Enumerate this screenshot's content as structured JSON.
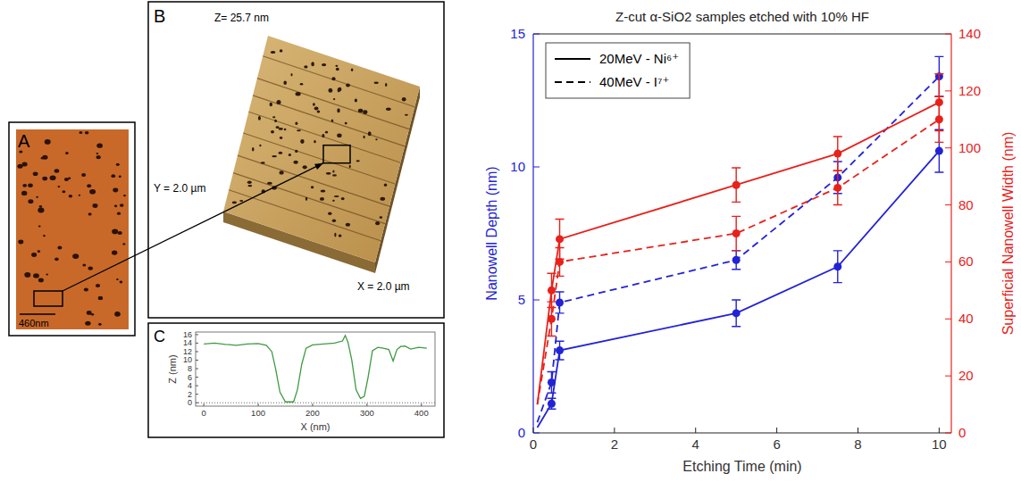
{
  "images": [
    {
      "panel": "A",
      "scale_bar": "460nm"
    },
    {
      "panel": "B",
      "z_label": "Z= 25.7 nm",
      "y_label": "Y = 2.0 µm",
      "x_label": "X = 2.0 µm"
    }
  ],
  "chart_data": [
    {
      "panel": "C",
      "type": "line",
      "x_label": "X (nm)",
      "y_label": "Z (nm)",
      "x": [
        0,
        20,
        40,
        60,
        80,
        100,
        115,
        125,
        132,
        140,
        150,
        165,
        172,
        180,
        188,
        200,
        220,
        240,
        255,
        260,
        265,
        272,
        280,
        288,
        295,
        302,
        310,
        320,
        330,
        340,
        348,
        355,
        362,
        370,
        380,
        395,
        410
      ],
      "values": [
        13.8,
        14.0,
        13.7,
        13.5,
        13.8,
        13.9,
        13.5,
        12.0,
        8,
        2.5,
        0.2,
        0.2,
        3,
        9,
        12.8,
        13.6,
        13.8,
        14.0,
        14.5,
        15.8,
        14.2,
        10,
        3,
        1,
        1.5,
        6,
        12.2,
        13,
        12.8,
        12.5,
        9.8,
        12.5,
        13.2,
        13.3,
        12.6,
        13.0,
        12.8
      ],
      "color": "#3f9a3f",
      "xlim": [
        -15,
        425
      ],
      "xticks": [
        0,
        100,
        200,
        300,
        400
      ],
      "ylim": [
        -0.8,
        16.6
      ],
      "yticks": [
        0,
        2,
        4,
        6,
        8,
        10,
        12,
        14,
        16
      ]
    },
    {
      "type": "line",
      "title": "Z-cut α-SiO2 samples etched with 10% HF",
      "x_label": "Etching Time (min)",
      "y_label": "Nanowell Depth (nm)",
      "y2_label": "Superficial Nanowell Width (nm)",
      "x": [
        0.1,
        0.45,
        0.65,
        5,
        7.5,
        10
      ],
      "xlim": [
        0,
        10.3
      ],
      "xticks": [
        0,
        2,
        4,
        6,
        8,
        10
      ],
      "ylim": [
        0,
        15
      ],
      "yticks": [
        0,
        5,
        10,
        15
      ],
      "y2lim": [
        0,
        140
      ],
      "y2ticks": [
        0,
        20,
        40,
        60,
        80,
        100,
        120,
        140
      ],
      "legend": "upper-left",
      "series": [
        {
          "name": "20MeV - Ni⁶⁺",
          "color": "#2323d6",
          "line_style": "solid",
          "marker": "circle",
          "values": [
            0.2,
            1.1,
            3.1,
            4.5,
            6.25,
            10.6
          ],
          "errors": [
            null,
            0.2,
            0.35,
            0.5,
            0.6,
            0.8
          ]
        },
        {
          "name": "40MeV - I⁷⁺",
          "color": "#2323d6",
          "line_style": "dashed",
          "marker": "circle",
          "values": [
            0.4,
            1.9,
            4.9,
            6.5,
            9.6,
            13.4
          ],
          "errors": [
            null,
            0.4,
            0.4,
            0.35,
            0.6,
            0.75
          ]
        },
        {
          "name": "20MeV - Ni⁶⁺",
          "color": "#e8211b",
          "line_style": "solid",
          "marker": "circle",
          "axis": "y2",
          "values": [
            10,
            50,
            68,
            87,
            98,
            116
          ],
          "errors": [
            null,
            6,
            7,
            6,
            6,
            10
          ]
        },
        {
          "name": "40MeV - I⁷⁺",
          "color": "#e8211b",
          "line_style": "dashed",
          "marker": "circle",
          "axis": "y2",
          "values": [
            10,
            40,
            60,
            70,
            86,
            110
          ],
          "errors": [
            null,
            6,
            5,
            6,
            6,
            8
          ]
        }
      ]
    }
  ]
}
